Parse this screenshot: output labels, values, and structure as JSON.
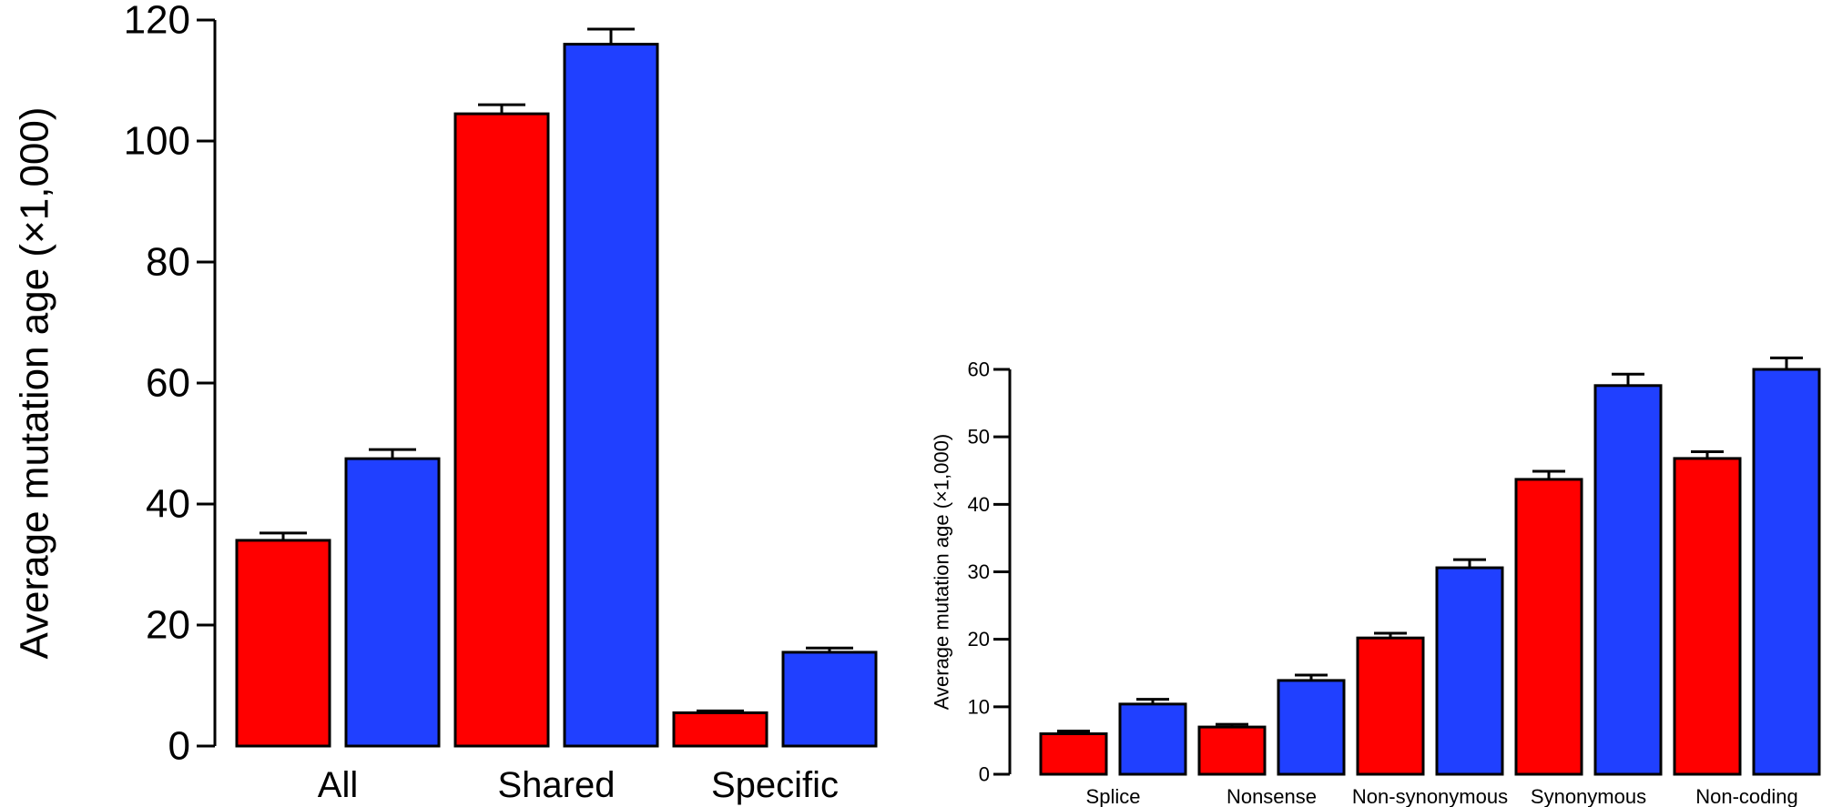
{
  "chart_data": [
    {
      "type": "bar",
      "ylabel": "Average mutation age (×1,000)",
      "categories": [
        "All",
        "Shared",
        "Specific"
      ],
      "ylim": [
        0,
        120
      ],
      "yticks": [
        0,
        20,
        40,
        60,
        80,
        100,
        120
      ],
      "series": [
        {
          "color": "#ff0000",
          "values": [
            34,
            104.5,
            5.5
          ],
          "errors": [
            1.2,
            1.5,
            0.3
          ]
        },
        {
          "color": "#2040ff",
          "values": [
            47.5,
            116,
            15.5
          ],
          "errors": [
            1.5,
            2.5,
            0.7
          ]
        }
      ]
    },
    {
      "type": "bar",
      "ylabel": "Average mutation age (×1,000)",
      "categories": [
        "Splice",
        "Nonsense",
        "Non-synonymous",
        "Synonymous",
        "Non-coding"
      ],
      "ylim": [
        0,
        60
      ],
      "yticks": [
        0,
        10,
        20,
        30,
        40,
        50,
        60
      ],
      "series": [
        {
          "color": "#ff0000",
          "values": [
            6,
            7,
            20.2,
            43.7,
            46.8
          ],
          "errors": [
            0.4,
            0.4,
            0.7,
            1.2,
            1.0
          ]
        },
        {
          "color": "#2040ff",
          "values": [
            10.4,
            13.9,
            30.6,
            57.6,
            60
          ],
          "errors": [
            0.7,
            0.8,
            1.2,
            1.7,
            1.7
          ]
        }
      ]
    }
  ]
}
